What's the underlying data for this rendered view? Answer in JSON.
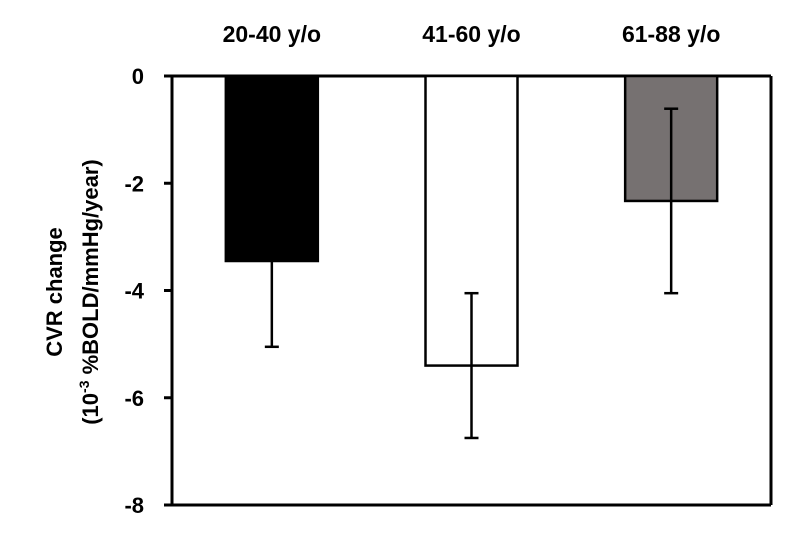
{
  "chart_data": {
    "type": "bar",
    "categories": [
      "20-40 y/o",
      "41-60 y/o",
      "61-88 y/o"
    ],
    "values": [
      -3.45,
      -5.4,
      -2.33
    ],
    "errors": [
      1.6,
      1.35,
      1.72
    ],
    "bar_colors": [
      "#000000",
      "#ffffff",
      "#767171"
    ],
    "ylabel_line1": "CVR change",
    "ylabel_line2_prefix": "(10",
    "ylabel_line2_exponent": "-3",
    "ylabel_line2_suffix": " %BOLD/mmHg/year)",
    "ylim": [
      -8,
      0
    ],
    "yticks": [
      0,
      -2,
      -4,
      -6,
      -8
    ],
    "category_labels_position": "top",
    "grid": false
  }
}
